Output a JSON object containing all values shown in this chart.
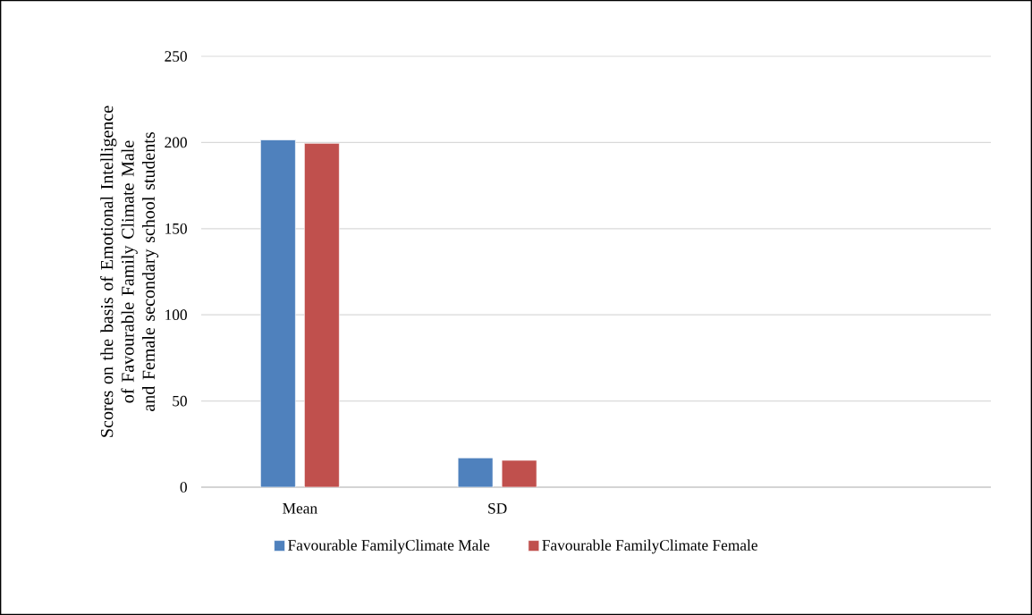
{
  "chart_data": {
    "type": "bar",
    "ylabel": "Scores on the basis of Emotional Intelligence of Favourable Family Climate Male and Female secondary school students",
    "categories": [
      "Mean",
      "SD",
      null,
      null
    ],
    "series": [
      {
        "name": "Favourable FamilyClimate Male",
        "color": "#4f81bd",
        "values": [
          201.5,
          17,
          null,
          null
        ]
      },
      {
        "name": "Favourable FamilyClimate Female",
        "color": "#c0504d",
        "values": [
          199.5,
          15.6,
          null,
          null
        ]
      }
    ],
    "ylim": [
      0,
      250
    ],
    "yticks": [
      0,
      50,
      100,
      150,
      200,
      250
    ],
    "grid": "y",
    "legend": "bottom"
  }
}
